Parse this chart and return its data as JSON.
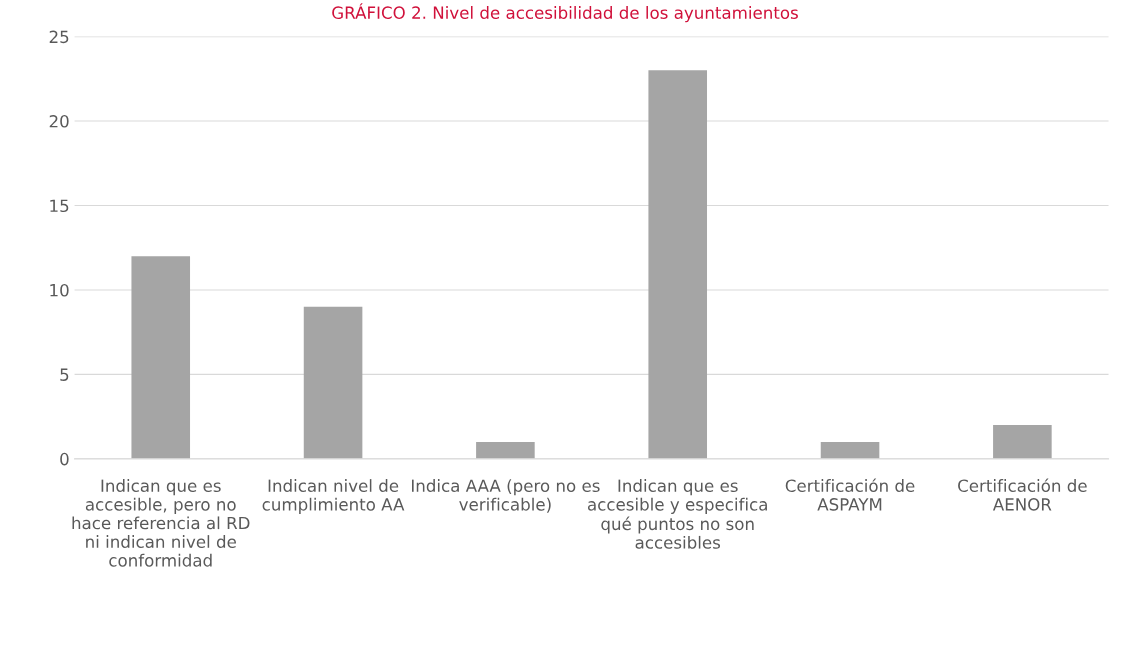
{
  "chart_data": {
    "type": "bar",
    "title": "GRÁFICO 2. Nivel de accesibilidad de los ayuntamientos",
    "categories": [
      "Indican que es accesible, pero no hace referencia al RD ni indican nivel de conformidad",
      "Indican nivel de cumplimiento AA",
      "Indica AAA (pero no es verificable)",
      "Indican que es accesible y especifica qué puntos no son accesibles",
      "Certificación de ASPAYM",
      "Certificación de AENOR"
    ],
    "values": [
      12,
      9,
      1,
      23,
      1,
      2
    ],
    "color": "#a5a5a5",
    "ylim": [
      0,
      25
    ],
    "yticks": [
      0,
      5,
      10,
      15,
      20,
      25
    ],
    "grid": "y"
  }
}
